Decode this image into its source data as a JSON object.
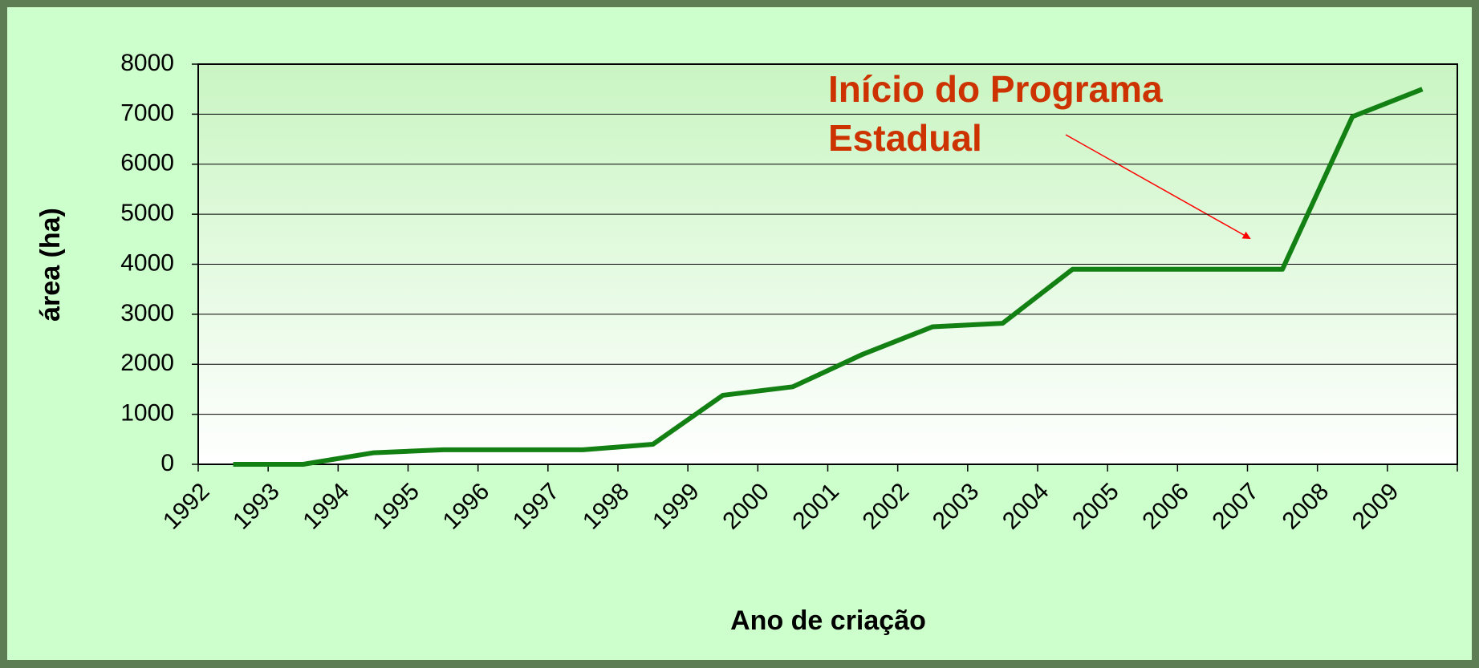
{
  "chart_data": {
    "type": "line",
    "x_label": "Ano de criação",
    "y_label": "área (ha)",
    "annotation": [
      "Início do Programa",
      "Estadual"
    ],
    "categories": [
      "1992",
      "1993",
      "1994",
      "1995",
      "1996",
      "1997",
      "1998",
      "1999",
      "2000",
      "2001",
      "2002",
      "2003",
      "2004",
      "2005",
      "2006",
      "2007",
      "2008",
      "2009"
    ],
    "series": [
      {
        "color": "#138013",
        "values": [
          0,
          0,
          230,
          290,
          290,
          290,
          400,
          1380,
          1550,
          2200,
          2750,
          2820,
          3900,
          3900,
          3900,
          3900,
          6950,
          7500
        ]
      }
    ],
    "ylim": [
      0,
      8000
    ],
    "yticks": [
      0,
      1000,
      2000,
      3000,
      4000,
      5000,
      6000,
      7000,
      8000
    ],
    "grid": true
  }
}
